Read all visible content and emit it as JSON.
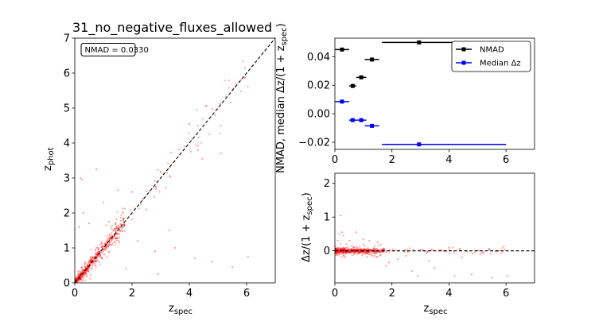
{
  "chart_data": [
    {
      "type": "scatter",
      "title": "31_no_negative_fluxes_allowed",
      "xlabel": "z_spec",
      "ylabel": "z_phot",
      "xlim": [
        0,
        7
      ],
      "ylim": [
        0,
        7
      ],
      "xticks": [
        0,
        2,
        4,
        6
      ],
      "yticks": [
        0,
        1,
        2,
        3,
        4,
        5,
        6,
        7
      ],
      "annotation": "NMAD = 0.0330",
      "reference_line": "y = x (dashed black)",
      "point_color": "#ff0000",
      "outliers": [
        {
          "x": 0.2,
          "y": 3.0
        },
        {
          "x": 0.25,
          "y": 2.95
        },
        {
          "x": 0.75,
          "y": 3.25
        },
        {
          "x": 4.2,
          "y": 0.7
        },
        {
          "x": 4.8,
          "y": 0.6
        },
        {
          "x": 5.5,
          "y": 0.45
        },
        {
          "x": 5.1,
          "y": 4.5
        },
        {
          "x": 5.6,
          "y": 5.6
        },
        {
          "x": 5.95,
          "y": 6.15
        },
        {
          "x": 6.05,
          "y": 0.75
        },
        {
          "x": 4.0,
          "y": 4.55
        },
        {
          "x": 4.45,
          "y": 3.55
        },
        {
          "x": 4.3,
          "y": 3.8
        },
        {
          "x": 4.6,
          "y": 5.05
        },
        {
          "x": 5.1,
          "y": 3.7
        },
        {
          "x": 2.9,
          "y": 0.25
        },
        {
          "x": 3.5,
          "y": 1.0
        },
        {
          "x": 1.0,
          "y": 2.3
        },
        {
          "x": 1.5,
          "y": 2.65
        },
        {
          "x": 0.3,
          "y": 2.0
        },
        {
          "x": 0.15,
          "y": 1.6
        },
        {
          "x": 1.2,
          "y": 1.75
        },
        {
          "x": 2.2,
          "y": 1.2
        },
        {
          "x": 2.8,
          "y": 0.9
        },
        {
          "x": 1.8,
          "y": 0.4
        },
        {
          "x": 3.3,
          "y": 1.5
        },
        {
          "x": 0.5,
          "y": 1.7
        },
        {
          "x": 2.5,
          "y": 2.1
        },
        {
          "x": 2.0,
          "y": 2.6
        }
      ]
    },
    {
      "type": "errorbar",
      "ylabel": "NMAD, median Δz/(1 + z_spec)",
      "xlim": [
        0,
        7
      ],
      "ylim": [
        -0.025,
        0.053
      ],
      "xticks": [
        0,
        2,
        4,
        6
      ],
      "yticks": [
        -0.02,
        0.0,
        0.02,
        0.04
      ],
      "ytick_labels": [
        "−0.02",
        "0.00",
        "0.02",
        "0.04"
      ],
      "legend_position": "upper right",
      "series": [
        {
          "name": "NMAD",
          "color": "#000000",
          "points": [
            {
              "x": 0.25,
              "y": 0.045,
              "xerr_lo": 0.25,
              "xerr_hi": 0.25
            },
            {
              "x": 0.625,
              "y": 0.0195,
              "xerr_lo": 0.125,
              "xerr_hi": 0.125
            },
            {
              "x": 0.925,
              "y": 0.0255,
              "xerr_lo": 0.175,
              "xerr_hi": 0.175
            },
            {
              "x": 1.3,
              "y": 0.038,
              "xerr_lo": 0.25,
              "xerr_hi": 0.25
            },
            {
              "x": 2.95,
              "y": 0.05,
              "xerr_lo": 1.3,
              "xerr_hi": 3.05
            }
          ]
        },
        {
          "name": "Median Δz",
          "color": "#0000ff",
          "points": [
            {
              "x": 0.25,
              "y": 0.0085,
              "xerr_lo": 0.25,
              "xerr_hi": 0.25
            },
            {
              "x": 0.625,
              "y": -0.0045,
              "xerr_lo": 0.125,
              "xerr_hi": 0.125
            },
            {
              "x": 0.925,
              "y": -0.0045,
              "xerr_lo": 0.175,
              "xerr_hi": 0.175
            },
            {
              "x": 1.3,
              "y": -0.0085,
              "xerr_lo": 0.25,
              "xerr_hi": 0.25
            },
            {
              "x": 2.95,
              "y": -0.0215,
              "xerr_lo": 1.3,
              "xerr_hi": 3.05
            }
          ]
        }
      ]
    },
    {
      "type": "scatter",
      "xlabel": "z_spec",
      "ylabel": "Δz/(1 + z_spec)",
      "xlim": [
        0,
        7
      ],
      "ylim": [
        -0.95,
        2.3
      ],
      "xticks": [
        0,
        2,
        4,
        6
      ],
      "yticks": [
        0,
        1,
        2
      ],
      "reference_line": "y = 0 (dashed black)",
      "point_color": "#ff0000",
      "outliers": [
        {
          "x": 0.2,
          "y": 1.05
        },
        {
          "x": 0.25,
          "y": 0.55
        },
        {
          "x": 0.3,
          "y": 0.45
        },
        {
          "x": 0.75,
          "y": 0.55
        },
        {
          "x": 1.0,
          "y": 0.35
        },
        {
          "x": 1.2,
          "y": 0.3
        },
        {
          "x": 1.5,
          "y": 0.25
        },
        {
          "x": 0.15,
          "y": 0.5
        },
        {
          "x": 0.5,
          "y": 0.3
        },
        {
          "x": 1.9,
          "y": -0.35
        },
        {
          "x": 2.2,
          "y": -0.25
        },
        {
          "x": 2.7,
          "y": -0.6
        },
        {
          "x": 2.9,
          "y": -0.75
        },
        {
          "x": 3.5,
          "y": -0.5
        },
        {
          "x": 4.2,
          "y": -0.75
        },
        {
          "x": 4.8,
          "y": -0.7
        },
        {
          "x": 5.5,
          "y": -0.8
        },
        {
          "x": 6.05,
          "y": -0.75
        },
        {
          "x": 4.45,
          "y": -0.2
        },
        {
          "x": 3.3,
          "y": -0.3
        },
        {
          "x": 2.5,
          "y": -0.15
        },
        {
          "x": 5.1,
          "y": -0.1
        },
        {
          "x": 5.95,
          "y": 0.05
        },
        {
          "x": 4.0,
          "y": 0.1
        },
        {
          "x": 0.4,
          "y": 0.2
        },
        {
          "x": 0.6,
          "y": 0.15
        },
        {
          "x": 1.8,
          "y": -0.45
        },
        {
          "x": 0.1,
          "y": 0.3
        },
        {
          "x": 1.3,
          "y": -0.15
        }
      ]
    }
  ]
}
